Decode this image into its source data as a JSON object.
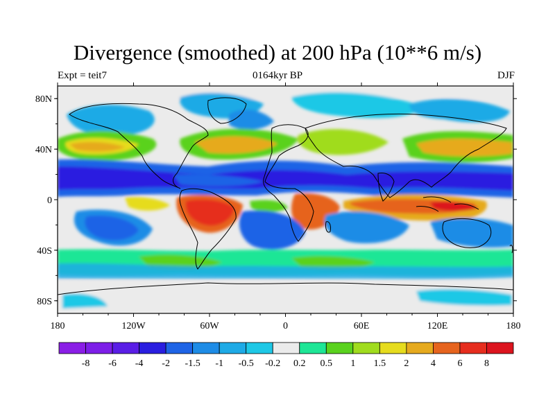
{
  "title": "Divergence (smoothed) at 200 hPa (10**6 m/s)",
  "subtitle_left": "Expt = teit7",
  "subtitle_center": "0164kyr BP",
  "subtitle_right": "DJF",
  "lat_labels": [
    "80N",
    "40N",
    "0",
    "40S",
    "80S"
  ],
  "lat_values": [
    80,
    40,
    0,
    -40,
    -80
  ],
  "lon_labels": [
    "180",
    "120W",
    "60W",
    "0",
    "60E",
    "120E",
    "180"
  ],
  "lon_values": [
    -180,
    -120,
    -60,
    0,
    60,
    120,
    180
  ],
  "colorbar": {
    "labels": [
      "-8",
      "-6",
      "-4",
      "-2",
      "-1.5",
      "-1",
      "-0.5",
      "-0.2",
      "0.2",
      "0.5",
      "1",
      "1.5",
      "2",
      "4",
      "6",
      "8"
    ],
    "colors": [
      "#8a1ee6",
      "#7d1ee8",
      "#5a1ee6",
      "#2a1ee0",
      "#1e64e6",
      "#1e8ce6",
      "#1eaae6",
      "#1ec8e6",
      "#ebebeb",
      "#1ee696",
      "#5ad21e",
      "#a0dc1e",
      "#e6dc1e",
      "#e6aa1e",
      "#e6641e",
      "#e62d1e",
      "#dc141e"
    ]
  }
}
